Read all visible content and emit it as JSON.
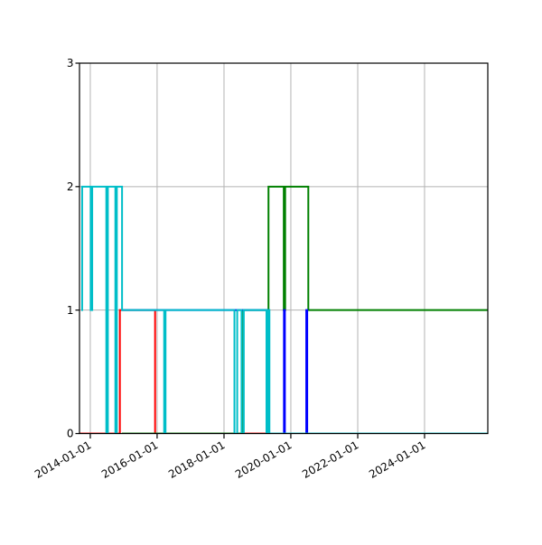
{
  "figure": {
    "background": "#ffffff",
    "axis_color": "#000000",
    "grid_color": "#b3b3b3",
    "text_color": "#000000"
  },
  "chart_data": {
    "type": "line",
    "step": "post",
    "title": "",
    "xlabel": "",
    "ylabel": "",
    "grid": true,
    "legend": null,
    "ylim": [
      0,
      3
    ],
    "xlim": [
      "2013-09-05",
      "2025-11-22"
    ],
    "y_ticks": [
      0,
      1,
      2,
      3
    ],
    "y_tick_labels": [
      "0",
      "1",
      "2",
      "3"
    ],
    "x_ticks": [
      "2014-01-01",
      "2016-01-01",
      "2018-01-01",
      "2020-01-01",
      "2022-01-01",
      "2024-01-01"
    ],
    "x_tick_labels": [
      "2014-01-01",
      "2016-01-01",
      "2018-01-01",
      "2020-01-01",
      "2022-01-01",
      "2024-01-01"
    ],
    "series": [
      {
        "name": "red",
        "color": "#ff0000",
        "points": [
          [
            "2013-09-05",
            0
          ],
          [
            "2014-11-20",
            1
          ],
          [
            "2015-12-10",
            0
          ],
          [
            "2025-11-22",
            0
          ]
        ]
      },
      {
        "name": "green",
        "color": "#008000",
        "points": [
          [
            "2014-12-12",
            0
          ],
          [
            "2018-08-01",
            1
          ],
          [
            "2019-05-02",
            2
          ],
          [
            "2019-10-16",
            1
          ],
          [
            "2019-10-31",
            2
          ],
          [
            "2020-07-10",
            1
          ],
          [
            "2025-11-22",
            1
          ]
        ]
      },
      {
        "name": "blue",
        "color": "#0000ff",
        "points": [
          [
            "2014-12-11",
            1
          ],
          [
            "2019-05-02",
            0
          ],
          [
            "2019-10-18",
            1
          ],
          [
            "2019-10-28",
            0
          ],
          [
            "2020-06-18",
            1
          ],
          [
            "2020-06-28",
            0
          ],
          [
            "2025-11-22",
            0
          ]
        ]
      },
      {
        "name": "cyan",
        "color": "#00bec8",
        "points": [
          [
            "2013-09-24",
            1
          ],
          [
            "2013-10-04",
            2
          ],
          [
            "2014-01-05",
            1
          ],
          [
            "2014-01-22",
            2
          ],
          [
            "2014-06-25",
            0
          ],
          [
            "2014-07-12",
            2
          ],
          [
            "2014-10-02",
            0
          ],
          [
            "2014-10-18",
            2
          ],
          [
            "2014-12-14",
            1
          ],
          [
            "2016-03-18",
            0
          ],
          [
            "2016-04-02",
            1
          ],
          [
            "2018-04-25",
            0
          ],
          [
            "2018-05-25",
            1
          ],
          [
            "2018-07-12",
            0
          ],
          [
            "2018-08-05",
            1
          ],
          [
            "2019-04-10",
            0
          ],
          [
            "2019-04-28",
            1
          ],
          [
            "2019-05-12",
            0
          ],
          [
            "2025-11-22",
            0
          ]
        ]
      }
    ]
  }
}
